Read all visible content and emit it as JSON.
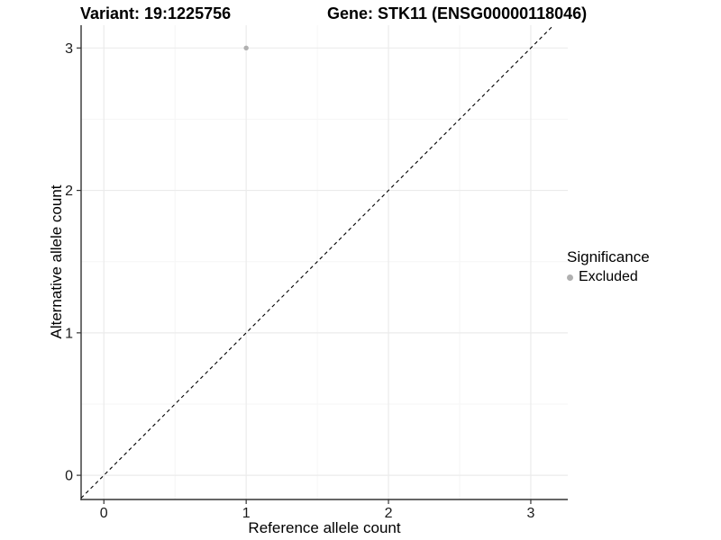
{
  "chart_data": {
    "type": "scatter",
    "titles": {
      "left": "Variant: 19:1225756",
      "right": "Gene: STK11 (ENSG00000118046)"
    },
    "xlabel": "Reference allele count",
    "ylabel": "Alternative allele count",
    "x_ticks": [
      0,
      1,
      2,
      3
    ],
    "y_ticks": [
      0,
      1,
      2,
      3
    ],
    "x_minor": [
      0.5,
      1.5,
      2.5
    ],
    "y_minor": [
      0.5,
      1.5,
      2.5
    ],
    "xlim": [
      -0.16,
      3.26
    ],
    "ylim": [
      -0.17,
      3.16
    ],
    "grid": true,
    "reference_line": {
      "type": "identity",
      "slope": 1,
      "intercept": 0,
      "style": "dashed",
      "color": "#000000"
    },
    "points": [
      {
        "x": 1,
        "y": 3,
        "series": "Excluded"
      }
    ],
    "series": [
      {
        "name": "Excluded",
        "color": "#b0b0b0"
      }
    ],
    "legend": {
      "title": "Significance",
      "position": "right",
      "items": [
        {
          "label": "Excluded",
          "color": "#b0b0b0"
        }
      ]
    },
    "colors": {
      "grid_major": "#ebebeb",
      "grid_minor": "#f6f6f6",
      "axis": "#333333",
      "tick_text": "#1a1a1a"
    }
  }
}
